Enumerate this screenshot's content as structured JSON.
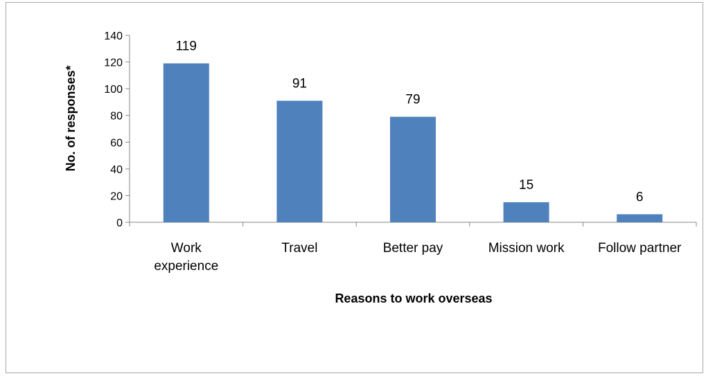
{
  "chart_data": {
    "type": "bar",
    "categories": [
      [
        "Work",
        "experience"
      ],
      [
        "Travel"
      ],
      [
        "Better pay"
      ],
      [
        "Mission work"
      ],
      [
        "Follow partner"
      ]
    ],
    "values": [
      119,
      91,
      79,
      15,
      6
    ],
    "data_labels": [
      "119",
      "91",
      "79",
      "15",
      "6"
    ],
    "title": "",
    "xlabel": "Reasons to work overseas",
    "ylabel": "No. of responses*",
    "ylim": [
      0,
      140
    ],
    "yticks": [
      0,
      20,
      40,
      60,
      80,
      100,
      120,
      140
    ],
    "grid": false,
    "legend": "none",
    "bar_color": "#4f81bd"
  }
}
